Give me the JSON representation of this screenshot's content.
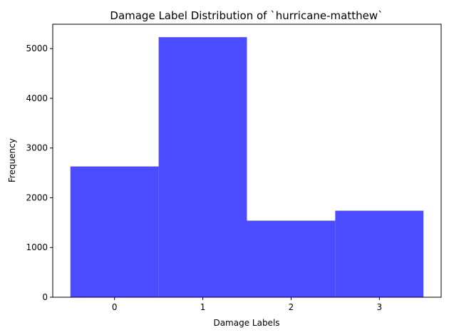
{
  "chart_data": {
    "type": "bar",
    "title": "Damage Label Distribution of `hurricane-matthew`",
    "xlabel": "Damage Labels",
    "ylabel": "Frequency",
    "categories": [
      "0",
      "1",
      "2",
      "3"
    ],
    "values": [
      2630,
      5230,
      1540,
      1740
    ],
    "xlim": [
      -0.7,
      3.7
    ],
    "ylim": [
      0,
      5490
    ],
    "yticks": [
      0,
      1000,
      2000,
      3000,
      4000,
      5000
    ],
    "bar_color": "#4b4bff",
    "grid": false,
    "legend": "none"
  }
}
